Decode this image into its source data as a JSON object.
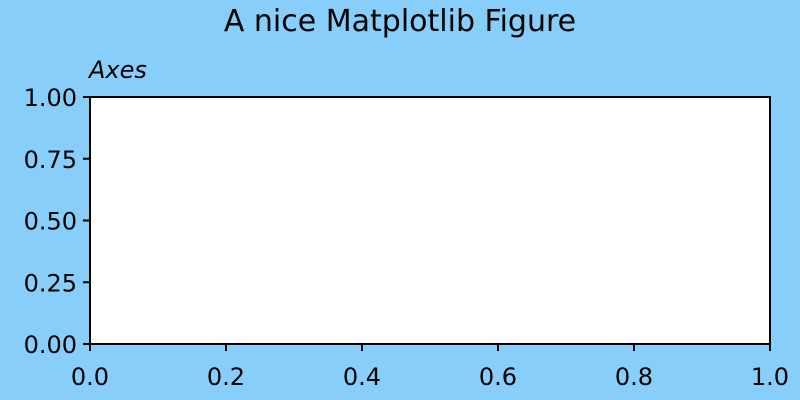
{
  "figure": {
    "title": "A nice Matplotlib Figure",
    "background_color": "#87CEFA"
  },
  "chart_data": {
    "type": "line",
    "title": "Axes",
    "xlabel": "",
    "ylabel": "",
    "xlim": [
      0.0,
      1.0
    ],
    "ylim": [
      0.0,
      1.0
    ],
    "x_ticks": [
      0.0,
      0.2,
      0.4,
      0.6,
      0.8,
      1.0
    ],
    "x_tick_labels": [
      "0.0",
      "0.2",
      "0.4",
      "0.6",
      "0.8",
      "1.0"
    ],
    "y_ticks": [
      0.0,
      0.25,
      0.5,
      0.75,
      1.0
    ],
    "y_tick_labels": [
      "0.00",
      "0.25",
      "0.50",
      "0.75",
      "1.00"
    ],
    "series": [],
    "grid": false,
    "axes_facecolor": "#FFFFFF",
    "title_style": "italic",
    "title_loc": "left"
  }
}
